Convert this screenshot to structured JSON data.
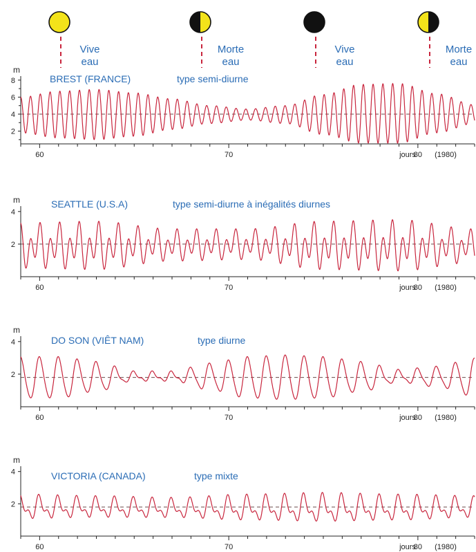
{
  "moon_phases": [
    {
      "phase": "full",
      "label1": "Vive",
      "label2": "eau"
    },
    {
      "phase": "first-quarter",
      "label1": "Morte",
      "label2": "eau"
    },
    {
      "phase": "new",
      "label1": "Vive",
      "label2": "eau"
    },
    {
      "phase": "last-quarter",
      "label1": "Morte",
      "label2": "eau"
    }
  ],
  "colors": {
    "curve": "#c8243c",
    "label": "#2a6cb5",
    "moon_fill": "#f3e31a",
    "moon_dark": "#111111",
    "axis": "#222222"
  },
  "x_axis": {
    "ticks": [
      "60",
      "70",
      "80"
    ],
    "unit_label": "jours",
    "year_label": "(1980)"
  },
  "chart_data": [
    {
      "type": "line",
      "title": "BREST (FRANCE)",
      "subtitle": "type semi-diurne",
      "ylabel": "m",
      "yticks": [
        "2",
        "4",
        "6",
        "8"
      ],
      "ylim": [
        0.5,
        8.8
      ],
      "xlim": [
        59,
        83
      ],
      "mean_level": 4,
      "pattern": "semi-diurnal",
      "x": [
        59,
        61,
        63,
        65,
        67,
        69,
        71,
        73,
        75,
        77,
        79,
        81,
        83
      ],
      "high_water": [
        6.0,
        6.7,
        6.9,
        6.5,
        5.8,
        5.0,
        4.6,
        5.0,
        6.3,
        7.5,
        7.6,
        6.4,
        5.1
      ],
      "low_water": [
        1.8,
        1.2,
        1.0,
        1.4,
        2.2,
        2.9,
        3.3,
        2.9,
        1.6,
        0.6,
        0.6,
        1.8,
        2.9
      ]
    },
    {
      "type": "line",
      "title": "SEATTLE (U.S.A)",
      "subtitle": "type semi-diurne à inégalités diurnes",
      "ylabel": "m",
      "yticks": [
        "2",
        "4"
      ],
      "ylim": [
        0,
        4.5
      ],
      "xlim": [
        59,
        83
      ],
      "mean_level": 2,
      "pattern": "mixed-semi-diurnal",
      "x": [
        59,
        63,
        67,
        71,
        75,
        79,
        83
      ],
      "higher_high_water": [
        3.4,
        3.5,
        3.0,
        3.0,
        3.5,
        3.6,
        3.0
      ],
      "lower_low_water": [
        0.3,
        0.2,
        0.8,
        0.9,
        0.2,
        0.1,
        0.7
      ]
    },
    {
      "type": "line",
      "title": "DO SON (VIÊT NAM)",
      "subtitle": "type diurne",
      "ylabel": "m",
      "yticks": [
        "2",
        "4"
      ],
      "ylim": [
        0,
        4.5
      ],
      "xlim": [
        59,
        83
      ],
      "mean_level": 1.8,
      "pattern": "diurnal",
      "x": [
        59,
        61,
        63,
        65,
        67,
        69,
        71,
        73,
        75,
        77,
        79,
        81,
        83
      ],
      "high_water": [
        3.0,
        3.0,
        2.7,
        2.1,
        2.1,
        2.6,
        3.0,
        3.1,
        3.0,
        2.7,
        2.2,
        2.4,
        2.9
      ],
      "low_water": [
        0.5,
        0.5,
        0.9,
        1.6,
        1.6,
        1.0,
        0.5,
        0.4,
        0.5,
        0.9,
        1.5,
        1.2,
        0.6
      ]
    },
    {
      "type": "line",
      "title": "VICTORIA (CANADA)",
      "subtitle": "type mixte",
      "ylabel": "m",
      "yticks": [
        "2",
        "4"
      ],
      "ylim": [
        0,
        4.5
      ],
      "xlim": [
        59,
        83
      ],
      "mean_level": 1.8,
      "pattern": "mixed",
      "x": [
        59,
        63,
        67,
        71,
        75,
        79,
        83
      ],
      "higher_high_water": [
        2.6,
        2.5,
        2.4,
        2.6,
        2.7,
        2.6,
        2.5
      ],
      "lower_low_water": [
        0.9,
        1.0,
        1.0,
        0.8,
        0.7,
        0.8,
        1.0
      ]
    }
  ]
}
